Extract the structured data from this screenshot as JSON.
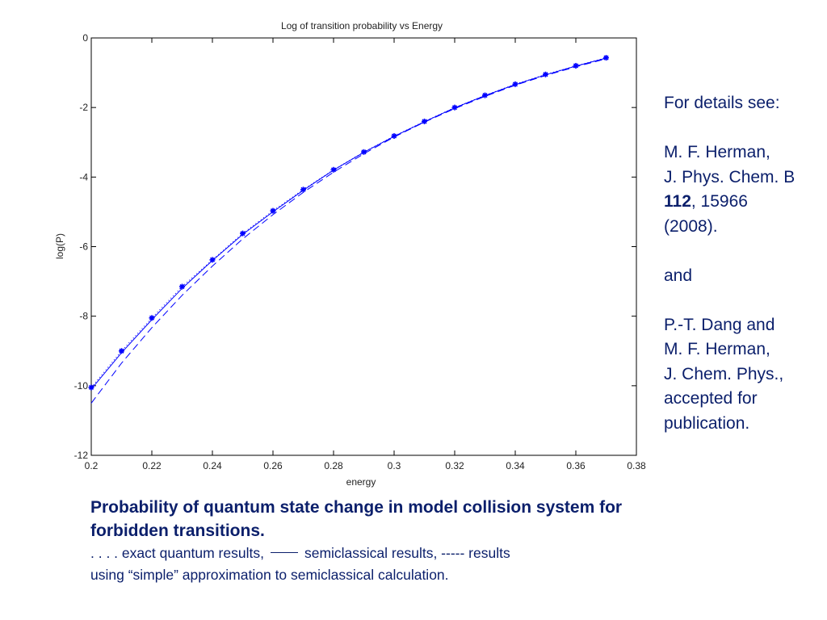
{
  "chart_data": {
    "type": "line",
    "title": "Log of transition probability vs Energy",
    "xlabel": "energy",
    "ylabel": "log(P)",
    "xlim": [
      0.2,
      0.38
    ],
    "ylim": [
      -12,
      0
    ],
    "xticks": [
      "0.2",
      "0.22",
      "0.24",
      "0.26",
      "0.28",
      "0.3",
      "0.32",
      "0.34",
      "0.36",
      "0.38"
    ],
    "yticks": [
      "0",
      "-2",
      "-4",
      "-6",
      "-8",
      "-10",
      "-12"
    ],
    "grid": false,
    "color": "#0000ff",
    "series": [
      {
        "style": "dotted-markers",
        "x": [
          0.2,
          0.21,
          0.22,
          0.23,
          0.24,
          0.25,
          0.26,
          0.27,
          0.28,
          0.29,
          0.3,
          0.31,
          0.32,
          0.33,
          0.34,
          0.35,
          0.36,
          0.37
        ],
        "y": [
          -10.05,
          -9.0,
          -8.05,
          -7.15,
          -6.38,
          -5.62,
          -4.97,
          -4.36,
          -3.79,
          -3.28,
          -2.82,
          -2.4,
          -2.0,
          -1.65,
          -1.33,
          -1.05,
          -0.8,
          -0.57
        ]
      },
      {
        "style": "solid",
        "x": [
          0.2,
          0.21,
          0.22,
          0.23,
          0.24,
          0.25,
          0.26,
          0.27,
          0.28,
          0.29,
          0.3,
          0.31,
          0.32,
          0.33,
          0.34,
          0.35,
          0.36,
          0.37
        ],
        "y": [
          -10.1,
          -9.05,
          -8.1,
          -7.2,
          -6.4,
          -5.65,
          -5.0,
          -4.38,
          -3.8,
          -3.29,
          -2.83,
          -2.41,
          -2.01,
          -1.66,
          -1.34,
          -1.06,
          -0.81,
          -0.58
        ]
      },
      {
        "style": "dashed",
        "x": [
          0.2,
          0.21,
          0.22,
          0.23,
          0.24,
          0.25,
          0.26,
          0.27,
          0.28,
          0.29,
          0.3,
          0.31,
          0.32,
          0.33,
          0.34,
          0.35,
          0.36,
          0.37
        ],
        "y": [
          -10.5,
          -9.35,
          -8.33,
          -7.4,
          -6.56,
          -5.78,
          -5.08,
          -4.44,
          -3.86,
          -3.33,
          -2.85,
          -2.42,
          -2.03,
          -1.68,
          -1.36,
          -1.08,
          -0.83,
          -0.6
        ]
      }
    ]
  },
  "side_notes": [
    {
      "text": "For details see:"
    },
    {
      "text": ""
    },
    {
      "text": "M. F. Herman,"
    },
    {
      "text": "J. Phys. Chem. B"
    },
    {
      "bold": "112",
      "text": ", 15966"
    },
    {
      "text": "(2008)."
    },
    {
      "text": ""
    },
    {
      "text": "and"
    },
    {
      "text": ""
    },
    {
      "text": "P.-T. Dang and"
    },
    {
      "text": "M. F. Herman,"
    },
    {
      "text": "J. Chem. Phys.,"
    },
    {
      "text": "accepted for"
    },
    {
      "text": "publication."
    }
  ],
  "caption": {
    "heading_1": "Probability of quantum state change in model collision system for",
    "heading_2": "forbidden transitions.",
    "legend_dotted": ". . . .  exact quantum results,",
    "legend_solid": "semiclassical results, -----  results",
    "legend_line2": "using  “simple” approximation to semiclassical calculation."
  }
}
